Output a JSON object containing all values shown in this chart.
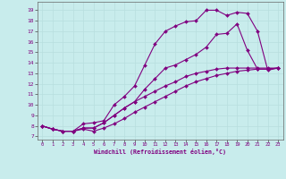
{
  "xlabel": "Windchill (Refroidissement éolien,°C)",
  "bg_color": "#c8ecec",
  "line_color": "#800080",
  "grid_color": "#b8dede",
  "xlim": [
    -0.5,
    23.5
  ],
  "ylim": [
    6.7,
    19.8
  ],
  "xticks": [
    0,
    1,
    2,
    3,
    4,
    5,
    6,
    7,
    8,
    9,
    10,
    11,
    12,
    13,
    14,
    15,
    16,
    17,
    18,
    19,
    20,
    21,
    22,
    23
  ],
  "yticks": [
    7,
    8,
    9,
    10,
    11,
    12,
    13,
    14,
    15,
    16,
    17,
    18,
    19
  ],
  "curves": [
    {
      "x": [
        0,
        1,
        2,
        3,
        4,
        5,
        6,
        7,
        8,
        9,
        10,
        11,
        12,
        13,
        14,
        15,
        16,
        17,
        18,
        19,
        20,
        21,
        22,
        23
      ],
      "y": [
        8,
        7.7,
        7.5,
        7.5,
        7.7,
        7.5,
        7.8,
        8.2,
        8.7,
        9.3,
        9.8,
        10.3,
        10.8,
        11.3,
        11.8,
        12.2,
        12.5,
        12.8,
        13.0,
        13.2,
        13.3,
        13.4,
        13.4,
        13.5
      ]
    },
    {
      "x": [
        0,
        1,
        2,
        3,
        4,
        5,
        6,
        7,
        8,
        9,
        10,
        11,
        12,
        13,
        14,
        15,
        16,
        17,
        18,
        19,
        20,
        21,
        22,
        23
      ],
      "y": [
        8,
        7.7,
        7.5,
        7.5,
        7.8,
        7.8,
        8.3,
        9.0,
        9.7,
        10.3,
        10.8,
        11.3,
        11.8,
        12.2,
        12.7,
        13.0,
        13.2,
        13.4,
        13.5,
        13.5,
        13.5,
        13.5,
        13.5,
        13.5
      ]
    },
    {
      "x": [
        0,
        1,
        2,
        3,
        4,
        5,
        6,
        7,
        8,
        9,
        10,
        11,
        12,
        13,
        14,
        15,
        16,
        17,
        18,
        19,
        20,
        21,
        22,
        23
      ],
      "y": [
        8,
        7.7,
        7.5,
        7.5,
        7.8,
        7.8,
        8.3,
        9.0,
        9.7,
        10.3,
        11.5,
        12.5,
        13.5,
        13.8,
        14.3,
        14.8,
        15.5,
        16.7,
        16.8,
        17.7,
        15.2,
        13.4,
        13.4,
        13.5
      ]
    },
    {
      "x": [
        0,
        1,
        2,
        3,
        4,
        5,
        6,
        7,
        8,
        9,
        10,
        11,
        12,
        13,
        14,
        15,
        16,
        17,
        18,
        19,
        20,
        21,
        22,
        23
      ],
      "y": [
        8,
        7.7,
        7.5,
        7.5,
        8.2,
        8.3,
        8.5,
        10.0,
        10.8,
        11.8,
        13.8,
        15.8,
        17.0,
        17.5,
        17.9,
        18.0,
        19.0,
        19.0,
        18.5,
        18.8,
        18.7,
        17.0,
        13.3,
        13.5
      ]
    }
  ]
}
